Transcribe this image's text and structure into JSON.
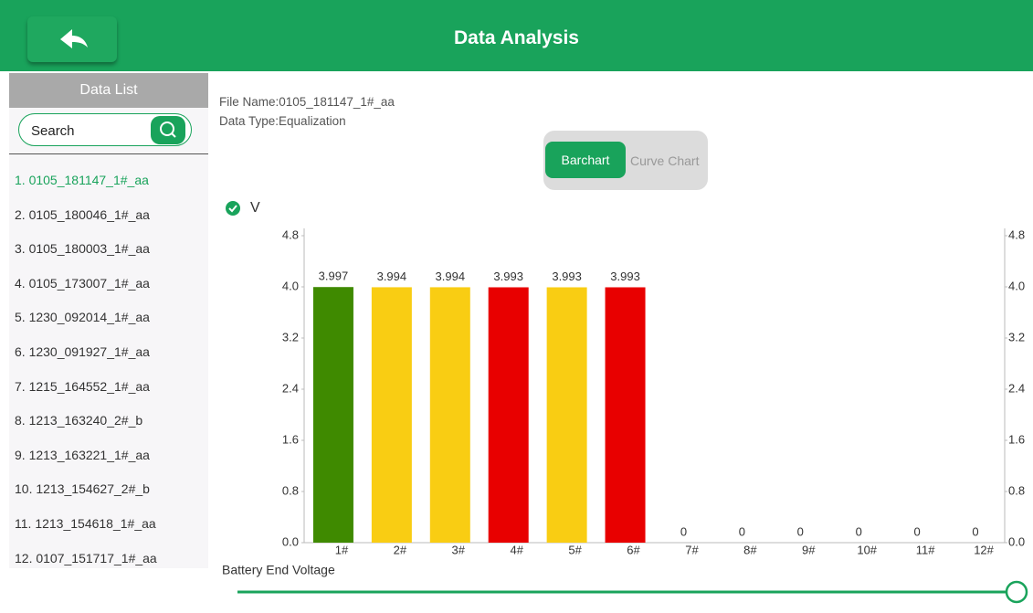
{
  "header": {
    "title": "Data Analysis"
  },
  "sidebar": {
    "title": "Data List",
    "search": "Search",
    "items": [
      "1. 0105_181147_1#_aa",
      "2. 0105_180046_1#_aa",
      "3. 0105_180003_1#_aa",
      "4. 0105_173007_1#_aa",
      "5. 1230_092014_1#_aa",
      "6. 1230_091927_1#_aa",
      "7. 1215_164552_1#_aa",
      "8. 1213_163240_2#_b",
      "9. 1213_163221_1#_aa",
      "10. 1213_154627_2#_b",
      "11. 1213_154618_1#_aa",
      "12. 0107_151717_1#_aa"
    ]
  },
  "info": {
    "file_name": "File Name:0105_181147_1#_aa",
    "data_type": "Data Type:Equalization"
  },
  "toggle": {
    "barchart": "Barchart",
    "curve": "Curve Chart"
  },
  "chart_data": {
    "type": "bar",
    "legend": "V",
    "xlabel": "Battery End Voltage",
    "categories": [
      "1#",
      "2#",
      "3#",
      "4#",
      "5#",
      "6#",
      "7#",
      "8#",
      "9#",
      "10#",
      "11#",
      "12#"
    ],
    "values": [
      3.997,
      3.994,
      3.994,
      3.993,
      3.993,
      3.993,
      0,
      0,
      0,
      0,
      0,
      0
    ],
    "colors": [
      "#3f8a00",
      "#f9cd13",
      "#f9cd13",
      "#e80000",
      "#f9cd13",
      "#e80000",
      "#3f8a00",
      "#3f8a00",
      "#3f8a00",
      "#3f8a00",
      "#3f8a00",
      "#3f8a00"
    ],
    "ylim": [
      0,
      4.8
    ],
    "yticks": [
      {
        "value": 0,
        "label": "0.0"
      },
      0.8,
      1.6,
      2.4,
      3.2,
      {
        "value": 4,
        "label": "4.0"
      },
      4.8
    ],
    "y2lim": [
      0,
      4.8
    ],
    "y2ticks": [
      {
        "value": 0,
        "label": "0.0"
      },
      0.8,
      1.6,
      2.4,
      3.2,
      {
        "value": 4,
        "label": "4.0"
      },
      4.8
    ]
  }
}
